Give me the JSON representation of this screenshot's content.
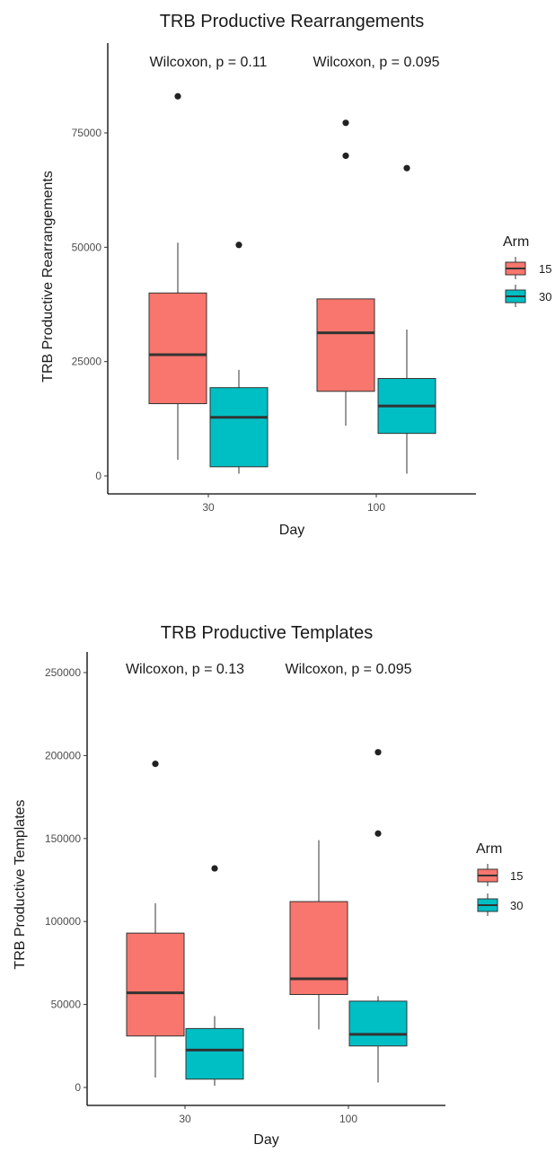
{
  "chart_data": [
    {
      "type": "box",
      "title": "TRB Productive Rearrangements",
      "xlabel": "Day",
      "ylabel": "TRB Productive Rearrangements",
      "ylim": [
        -3000,
        93000
      ],
      "yticks": [
        0,
        25000,
        50000,
        75000
      ],
      "categories": [
        "30",
        "100"
      ],
      "annotations": [
        "Wilcoxon, p = 0.11",
        "Wilcoxon, p = 0.095"
      ],
      "legend": {
        "title": "Arm",
        "position": "right"
      },
      "series": [
        {
          "name": "15",
          "color": "#F8766D",
          "boxes": [
            {
              "lower_whisker": 3500,
              "q1": 15800,
              "median": 26500,
              "q3": 40000,
              "upper_whisker": 51000,
              "outliers": [
                83000
              ]
            },
            {
              "lower_whisker": 11000,
              "q1": 18500,
              "median": 31300,
              "q3": 38700,
              "upper_whisker": 38700,
              "outliers": [
                70000,
                77200
              ]
            }
          ]
        },
        {
          "name": "30",
          "color": "#00BFC4",
          "boxes": [
            {
              "lower_whisker": 500,
              "q1": 2000,
              "median": 12800,
              "q3": 19300,
              "upper_whisker": 23200,
              "outliers": [
                50500
              ]
            },
            {
              "lower_whisker": 500,
              "q1": 9300,
              "median": 15300,
              "q3": 21300,
              "upper_whisker": 32000,
              "outliers": [
                67300
              ]
            }
          ]
        }
      ],
      "grid": false
    },
    {
      "type": "box",
      "title": "TRB Productive Templates",
      "xlabel": "Day",
      "ylabel": "TRB Productive Templates",
      "ylim": [
        -5000,
        255000
      ],
      "yticks": [
        0,
        50000,
        100000,
        150000,
        200000,
        250000
      ],
      "categories": [
        "30",
        "100"
      ],
      "annotations": [
        "Wilcoxon, p = 0.13",
        "Wilcoxon, p = 0.095"
      ],
      "legend": {
        "title": "Arm",
        "position": "right"
      },
      "series": [
        {
          "name": "15",
          "color": "#F8766D",
          "boxes": [
            {
              "lower_whisker": 6000,
              "q1": 31000,
              "median": 57000,
              "q3": 93000,
              "upper_whisker": 111000,
              "outliers": [
                195000
              ]
            },
            {
              "lower_whisker": 35000,
              "q1": 56000,
              "median": 65500,
              "q3": 112000,
              "upper_whisker": 149000,
              "outliers": []
            }
          ]
        },
        {
          "name": "30",
          "color": "#00BFC4",
          "boxes": [
            {
              "lower_whisker": 1000,
              "q1": 5000,
              "median": 22500,
              "q3": 35500,
              "upper_whisker": 43000,
              "outliers": [
                132000
              ]
            },
            {
              "lower_whisker": 3000,
              "q1": 25000,
              "median": 32000,
              "q3": 52000,
              "upper_whisker": 55000,
              "outliers": [
                153000,
                202000
              ]
            }
          ]
        }
      ],
      "grid": false
    }
  ]
}
